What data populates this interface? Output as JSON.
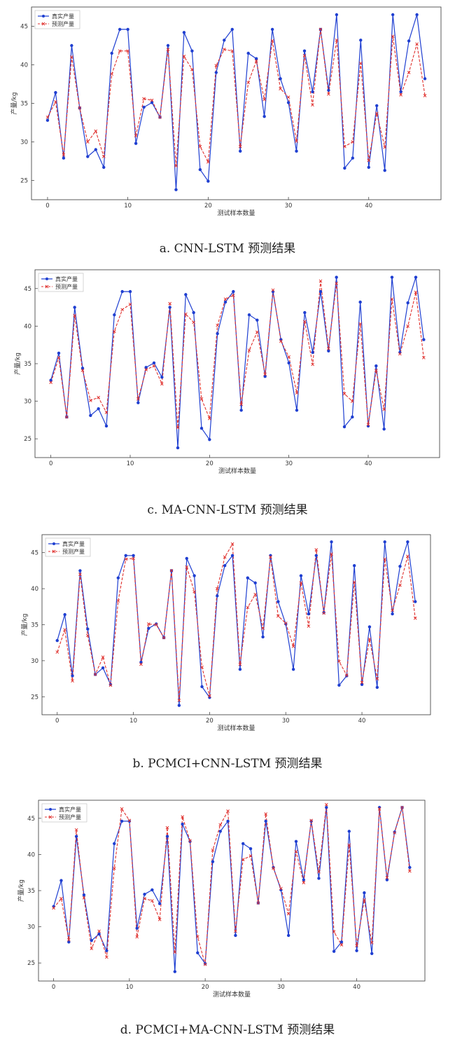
{
  "legend_true": "真实产量",
  "legend_pred": "预测产量",
  "xlabel": "测试样本数量",
  "ylabel": "产量/kg",
  "colors": {
    "true_line": "#1f3fd1",
    "pred_line": "#e0322f"
  },
  "chart_data": [
    {
      "type": "line",
      "caption": "a. CNN-LSTM 预测结果",
      "xlim": [
        -2,
        49
      ],
      "ylim": [
        22.5,
        47.5
      ],
      "xticks": [
        0,
        10,
        20,
        30,
        40
      ],
      "yticks": [
        25,
        30,
        35,
        40,
        45
      ],
      "legend": "top-left",
      "grid": false,
      "series": [
        {
          "name": "真实产量",
          "values": [
            32.8,
            36.4,
            27.9,
            42.5,
            34.4,
            28.1,
            29.0,
            26.7,
            41.5,
            44.6,
            44.6,
            29.8,
            34.5,
            35.1,
            33.2,
            42.5,
            23.8,
            44.2,
            41.8,
            26.4,
            24.9,
            39.0,
            43.2,
            44.6,
            28.8,
            41.5,
            40.8,
            33.3,
            44.6,
            38.2,
            35.1,
            28.8,
            41.8,
            36.5,
            44.6,
            36.7,
            46.5,
            26.6,
            27.9,
            43.2,
            26.7,
            34.7,
            26.3,
            46.5,
            36.5,
            43.1,
            46.5,
            38.2
          ]
        },
        {
          "name": "预测产量",
          "values": [
            33.2,
            35.2,
            28.3,
            41.0,
            34.4,
            30.0,
            31.4,
            28.1,
            38.8,
            41.8,
            41.8,
            30.8,
            35.6,
            35.4,
            33.2,
            42.0,
            26.9,
            41.1,
            39.4,
            29.4,
            27.4,
            39.9,
            42.0,
            41.8,
            29.4,
            37.7,
            40.5,
            35.5,
            43.1,
            36.9,
            35.8,
            30.1,
            41.2,
            34.8,
            44.6,
            36.2,
            43.2,
            29.4,
            30.0,
            40.2,
            27.6,
            33.7,
            29.3,
            43.7,
            36.1,
            39.0,
            42.7,
            36.0
          ]
        }
      ]
    },
    {
      "type": "line",
      "caption": "c. MA-CNN-LSTM 预测结果",
      "xlim": [
        -2,
        49
      ],
      "ylim": [
        22.5,
        47.5
      ],
      "xticks": [
        0,
        10,
        20,
        30,
        40
      ],
      "yticks": [
        25,
        30,
        35,
        40,
        45
      ],
      "legend": "top-left",
      "grid": false,
      "series": [
        {
          "name": "真实产量",
          "values": [
            32.8,
            36.4,
            27.9,
            42.5,
            34.4,
            28.1,
            29.0,
            26.7,
            41.5,
            44.6,
            44.6,
            29.8,
            34.5,
            35.1,
            33.2,
            42.5,
            23.8,
            44.2,
            41.8,
            26.4,
            24.9,
            39.0,
            43.2,
            44.6,
            28.8,
            41.5,
            40.8,
            33.3,
            44.6,
            38.2,
            35.1,
            28.8,
            41.8,
            36.5,
            44.6,
            36.7,
            46.5,
            26.6,
            27.9,
            43.2,
            26.7,
            34.7,
            26.3,
            46.5,
            36.5,
            43.1,
            46.5,
            38.2
          ]
        },
        {
          "name": "预测产量",
          "values": [
            32.5,
            35.8,
            27.9,
            41.4,
            34.1,
            30.1,
            30.5,
            28.5,
            39.3,
            42.2,
            42.9,
            30.3,
            34.2,
            34.7,
            32.3,
            43.0,
            26.5,
            41.6,
            40.5,
            30.3,
            27.7,
            40.1,
            43.6,
            44.1,
            29.6,
            36.8,
            39.2,
            33.6,
            44.8,
            38.0,
            35.9,
            31.1,
            40.6,
            34.9,
            46.0,
            37.0,
            45.7,
            31.0,
            30.0,
            40.3,
            26.9,
            34.1,
            28.9,
            43.6,
            36.3,
            40.0,
            44.5,
            35.8
          ]
        }
      ]
    },
    {
      "type": "line",
      "caption": "b. PCMCI+CNN-LSTM 预测结果",
      "xlim": [
        -2,
        49
      ],
      "ylim": [
        22.5,
        47.5
      ],
      "xticks": [
        0,
        10,
        20,
        30,
        40
      ],
      "yticks": [
        25,
        30,
        35,
        40,
        45
      ],
      "legend": "top-left",
      "grid": false,
      "series": [
        {
          "name": "真实产量",
          "values": [
            32.8,
            36.4,
            27.9,
            42.5,
            34.4,
            28.1,
            29.0,
            26.7,
            41.5,
            44.6,
            44.6,
            29.8,
            34.5,
            35.1,
            33.2,
            42.5,
            23.8,
            44.2,
            41.8,
            26.4,
            24.9,
            39.0,
            43.2,
            44.6,
            28.8,
            41.5,
            40.8,
            33.3,
            44.6,
            38.2,
            35.1,
            28.8,
            41.8,
            36.5,
            44.6,
            36.7,
            46.5,
            26.6,
            27.9,
            43.2,
            26.7,
            34.7,
            26.3,
            46.5,
            36.5,
            43.1,
            46.5,
            38.2
          ]
        },
        {
          "name": "预测产量",
          "values": [
            31.2,
            34.3,
            27.2,
            42.0,
            33.5,
            28.1,
            30.5,
            26.6,
            38.3,
            44.1,
            44.2,
            29.5,
            35.1,
            35.0,
            33.2,
            42.5,
            24.5,
            43.0,
            39.6,
            29.1,
            25.1,
            40.0,
            44.4,
            46.2,
            29.5,
            37.4,
            39.2,
            34.5,
            44.4,
            36.2,
            35.2,
            32.0,
            40.8,
            34.8,
            45.4,
            36.6,
            44.8,
            29.9,
            28.0,
            40.9,
            27.0,
            33.0,
            27.5,
            44.1,
            37.0,
            40.5,
            44.5,
            35.9
          ]
        }
      ]
    },
    {
      "type": "line",
      "caption": "d. PCMCI+MA-CNN-LSTM 预测结果",
      "xlim": [
        -2,
        49
      ],
      "ylim": [
        22.5,
        47.5
      ],
      "xticks": [
        0,
        10,
        20,
        30,
        40
      ],
      "yticks": [
        25,
        30,
        35,
        40,
        45
      ],
      "legend": "top-left",
      "grid": false,
      "series": [
        {
          "name": "真实产量",
          "values": [
            32.8,
            36.4,
            27.9,
            42.5,
            34.4,
            28.1,
            29.0,
            26.7,
            41.5,
            44.6,
            44.6,
            29.8,
            34.5,
            35.1,
            33.2,
            42.5,
            23.8,
            44.2,
            41.8,
            26.4,
            24.9,
            39.0,
            43.2,
            44.6,
            28.8,
            41.5,
            40.8,
            33.3,
            44.6,
            38.2,
            35.1,
            28.8,
            41.8,
            36.5,
            44.6,
            36.7,
            46.5,
            26.6,
            27.9,
            43.2,
            26.7,
            34.7,
            26.3,
            46.5,
            36.5,
            43.1,
            46.5,
            38.2
          ]
        },
        {
          "name": "预测产量",
          "values": [
            32.6,
            33.9,
            28.2,
            43.4,
            34.0,
            27.0,
            29.4,
            25.8,
            38.1,
            46.3,
            44.7,
            28.6,
            33.9,
            33.6,
            31.0,
            43.7,
            26.5,
            45.2,
            41.9,
            28.6,
            24.8,
            40.6,
            44.1,
            46.0,
            29.4,
            39.3,
            39.8,
            33.3,
            45.6,
            38.1,
            35.3,
            31.8,
            40.4,
            36.1,
            44.7,
            37.6,
            46.9,
            29.3,
            27.5,
            41.3,
            27.4,
            33.7,
            27.8,
            46.3,
            36.8,
            43.0,
            46.5,
            37.7
          ]
        }
      ]
    }
  ]
}
